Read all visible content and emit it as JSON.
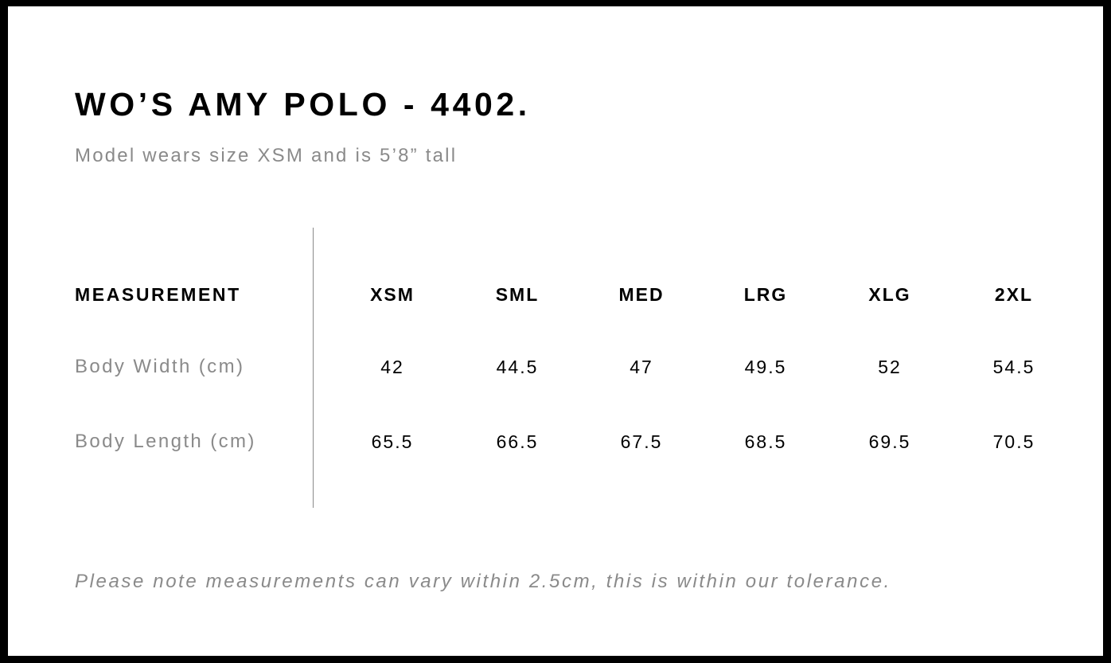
{
  "title": "WO’S AMY POLO - 4402.",
  "subtitle": "Model wears size XSM and is 5’8” tall",
  "table": {
    "header_label": "MEASUREMENT",
    "sizes": [
      "XSM",
      "SML",
      "MED",
      "LRG",
      "XLG",
      "2XL"
    ],
    "rows": [
      {
        "label": "Body Width (cm)",
        "values": [
          "42",
          "44.5",
          "47",
          "49.5",
          "52",
          "54.5"
        ]
      },
      {
        "label": "Body Length (cm)",
        "values": [
          "65.5",
          "66.5",
          "67.5",
          "68.5",
          "69.5",
          "70.5"
        ]
      }
    ]
  },
  "note": "Please note measurements can vary within 2.5cm, this is within our tolerance."
}
